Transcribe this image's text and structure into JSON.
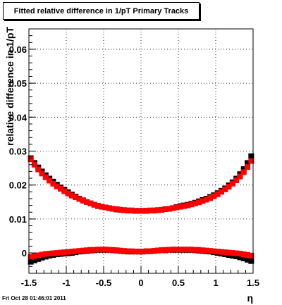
{
  "footer": "Fri Oct 28 01:46:01 2011",
  "chart_data": {
    "type": "scatter",
    "title": "Fitted relative difference in 1/pT  Primary Tracks",
    "xlabel": "η",
    "ylabel": "relative difference in 1/pT",
    "xlim": [
      -1.5,
      1.5
    ],
    "ylim": [
      -0.006,
      0.066
    ],
    "grid": true,
    "xticks": [
      "-1.5",
      "-1",
      "-0.5",
      "0",
      "0.5",
      "1",
      "1.5"
    ],
    "xtick_values": [
      -1.5,
      -1,
      -0.5,
      0,
      0.5,
      1,
      1.5
    ],
    "yticks": [
      "0",
      "0.01",
      "0.02",
      "0.03",
      "0.04",
      "0.05",
      "0.06"
    ],
    "ytick_values": [
      0,
      0.01,
      0.02,
      0.03,
      0.04,
      0.05,
      0.06
    ],
    "series": [
      {
        "color": "#000000",
        "x": [
          -1.475,
          -1.425,
          -1.375,
          -1.325,
          -1.275,
          -1.225,
          -1.175,
          -1.125,
          -1.075,
          -1.025,
          -0.975,
          -0.925,
          -0.875,
          -0.825,
          -0.775,
          -0.725,
          -0.675,
          -0.625,
          -0.575,
          -0.525,
          -0.475,
          -0.425,
          -0.375,
          -0.325,
          -0.275,
          -0.225,
          -0.175,
          -0.125,
          -0.075,
          -0.025,
          0.025,
          0.075,
          0.125,
          0.175,
          0.225,
          0.275,
          0.325,
          0.375,
          0.425,
          0.475,
          0.525,
          0.575,
          0.625,
          0.675,
          0.725,
          0.775,
          0.825,
          0.875,
          0.925,
          0.975,
          1.025,
          1.075,
          1.125,
          1.175,
          1.225,
          1.275,
          1.325,
          1.375,
          1.425,
          1.475
        ],
        "y": [
          0.0279,
          0.0265,
          0.0252,
          0.024,
          0.0229,
          0.0219,
          0.021,
          0.0201,
          0.0193,
          0.0186,
          0.0179,
          0.0172,
          0.0166,
          0.016,
          0.0155,
          0.015,
          0.0146,
          0.0142,
          0.0138,
          0.0136,
          0.0134,
          0.0132,
          0.013,
          0.0128,
          0.0127,
          0.0126,
          0.0125,
          0.0125,
          0.0124,
          0.0124,
          0.0124,
          0.0124,
          0.0125,
          0.0125,
          0.0126,
          0.0127,
          0.0129,
          0.013,
          0.0132,
          0.0135,
          0.0138,
          0.014,
          0.0142,
          0.0145,
          0.0148,
          0.0152,
          0.0156,
          0.016,
          0.0165,
          0.017,
          0.0176,
          0.0183,
          0.019,
          0.0199,
          0.0208,
          0.0219,
          0.0232,
          0.0247,
          0.0265,
          0.0285
        ]
      },
      {
        "color": "#ff0000",
        "x": [
          -1.475,
          -1.425,
          -1.375,
          -1.325,
          -1.275,
          -1.225,
          -1.175,
          -1.125,
          -1.075,
          -1.025,
          -0.975,
          -0.925,
          -0.875,
          -0.825,
          -0.775,
          -0.725,
          -0.675,
          -0.625,
          -0.575,
          -0.525,
          -0.475,
          -0.425,
          -0.375,
          -0.325,
          -0.275,
          -0.225,
          -0.175,
          -0.125,
          -0.075,
          -0.025,
          0.025,
          0.075,
          0.125,
          0.175,
          0.225,
          0.275,
          0.325,
          0.375,
          0.425,
          0.475,
          0.525,
          0.575,
          0.625,
          0.675,
          0.725,
          0.775,
          0.825,
          0.875,
          0.925,
          0.975,
          1.025,
          1.075,
          1.125,
          1.175,
          1.225,
          1.275,
          1.325,
          1.375,
          1.425,
          1.475
        ],
        "y": [
          0.0276,
          0.026,
          0.0246,
          0.0234,
          0.0223,
          0.0213,
          0.0204,
          0.0196,
          0.0189,
          0.0182,
          0.0175,
          0.0169,
          0.0164,
          0.0159,
          0.0154,
          0.015,
          0.0146,
          0.0142,
          0.0139,
          0.0136,
          0.0134,
          0.0132,
          0.013,
          0.0129,
          0.0127,
          0.0126,
          0.0125,
          0.0125,
          0.0124,
          0.0124,
          0.0124,
          0.0124,
          0.0125,
          0.0125,
          0.0126,
          0.0127,
          0.0129,
          0.013,
          0.0132,
          0.0134,
          0.0136,
          0.0138,
          0.014,
          0.0143,
          0.0146,
          0.0149,
          0.0153,
          0.0157,
          0.0162,
          0.0167,
          0.0173,
          0.018,
          0.0187,
          0.0195,
          0.0204,
          0.0214,
          0.0225,
          0.0238,
          0.0253,
          0.0271
        ]
      },
      {
        "color": "#000000",
        "x": [
          -1.475,
          -1.425,
          -1.375,
          -1.325,
          -1.275,
          -1.225,
          -1.175,
          -1.125,
          -1.075,
          -1.025,
          -0.975,
          -0.925,
          -0.875,
          -0.825,
          -0.775,
          -0.725,
          -0.675,
          -0.625,
          -0.575,
          -0.525,
          -0.475,
          -0.425,
          -0.375,
          -0.325,
          -0.275,
          -0.225,
          -0.175,
          -0.125,
          -0.075,
          -0.025,
          0.025,
          0.075,
          0.125,
          0.175,
          0.225,
          0.275,
          0.325,
          0.375,
          0.425,
          0.475,
          0.525,
          0.575,
          0.625,
          0.675,
          0.725,
          0.775,
          0.825,
          0.875,
          0.925,
          0.975,
          1.025,
          1.075,
          1.125,
          1.175,
          1.225,
          1.275,
          1.325,
          1.375,
          1.425,
          1.475
        ],
        "y": [
          -0.0026,
          -0.0022,
          -0.0018,
          -0.0014,
          -0.0011,
          -0.0008,
          -0.0006,
          -0.0004,
          -0.0003,
          -0.0002,
          -0.0001,
          0.0,
          0.0002,
          0.0004,
          0.0005,
          0.0006,
          0.0007,
          0.0008,
          0.0009,
          0.0009,
          0.0009,
          0.0009,
          0.0008,
          0.0007,
          0.0006,
          0.0005,
          0.0004,
          0.0004,
          0.0004,
          0.0004,
          0.0004,
          0.0005,
          0.0005,
          0.0006,
          0.0007,
          0.0008,
          0.0008,
          0.0009,
          0.0009,
          0.0009,
          0.0009,
          0.0009,
          0.0009,
          0.0009,
          0.0008,
          0.0007,
          0.0006,
          0.0005,
          0.0004,
          0.0002,
          0.0,
          -0.0002,
          -0.0004,
          -0.0006,
          -0.0008,
          -0.001,
          -0.0013,
          -0.0016,
          -0.002,
          -0.0024
        ]
      },
      {
        "color": "#ff0000",
        "x": [
          -1.475,
          -1.425,
          -1.375,
          -1.325,
          -1.275,
          -1.225,
          -1.175,
          -1.125,
          -1.075,
          -1.025,
          -0.975,
          -0.925,
          -0.875,
          -0.825,
          -0.775,
          -0.725,
          -0.675,
          -0.625,
          -0.575,
          -0.525,
          -0.475,
          -0.425,
          -0.375,
          -0.325,
          -0.275,
          -0.225,
          -0.175,
          -0.125,
          -0.075,
          -0.025,
          0.025,
          0.075,
          0.125,
          0.175,
          0.225,
          0.275,
          0.325,
          0.375,
          0.425,
          0.475,
          0.525,
          0.575,
          0.625,
          0.675,
          0.725,
          0.775,
          0.825,
          0.875,
          0.925,
          0.975,
          1.025,
          1.075,
          1.125,
          1.175,
          1.225,
          1.275,
          1.325,
          1.375,
          1.425,
          1.475
        ],
        "y": [
          -0.0012,
          -0.0009,
          -0.0007,
          -0.0005,
          -0.0003,
          -0.0002,
          -0.0001,
          0.0,
          0.0001,
          0.0002,
          0.0003,
          0.0004,
          0.0005,
          0.0006,
          0.0007,
          0.0008,
          0.0009,
          0.0009,
          0.001,
          0.001,
          0.001,
          0.0009,
          0.0009,
          0.0008,
          0.0007,
          0.0006,
          0.0005,
          0.0005,
          0.0004,
          0.0004,
          0.0004,
          0.0005,
          0.0005,
          0.0006,
          0.0007,
          0.0008,
          0.0009,
          0.0009,
          0.001,
          0.001,
          0.001,
          0.001,
          0.001,
          0.001,
          0.0009,
          0.0009,
          0.0008,
          0.0007,
          0.0006,
          0.0005,
          0.0004,
          0.0003,
          0.0002,
          0.0001,
          0.0,
          -0.0001,
          -0.0002,
          -0.0004,
          -0.0006,
          -0.0008
        ]
      }
    ]
  }
}
